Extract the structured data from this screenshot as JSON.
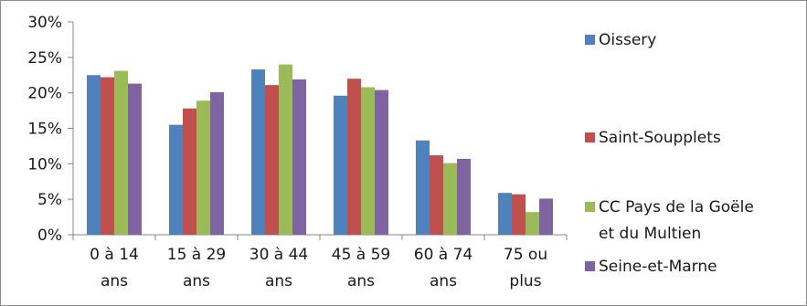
{
  "chart_data": {
    "type": "bar",
    "categories": [
      [
        "0 à 14",
        "ans"
      ],
      [
        "15 à 29",
        "ans"
      ],
      [
        "30 à 44",
        "ans"
      ],
      [
        "45 à 59",
        "ans"
      ],
      [
        "60 à 74",
        "ans"
      ],
      [
        "75 ou",
        "plus"
      ]
    ],
    "series": [
      {
        "name": "Oissery",
        "color": "#4f81bd",
        "values": [
          22.5,
          15.5,
          23.3,
          19.6,
          13.3,
          5.9
        ]
      },
      {
        "name": "Saint-Soupplets",
        "color": "#c0504d",
        "values": [
          22.2,
          17.8,
          21.1,
          22.0,
          11.2,
          5.7
        ]
      },
      {
        "name": [
          "CC Pays de la Goële",
          "et du Multien"
        ],
        "color": "#9bbb59",
        "values": [
          23.1,
          18.9,
          24.0,
          20.8,
          10.1,
          3.2
        ]
      },
      {
        "name": "Seine-et-Marne",
        "color": "#8064a2",
        "values": [
          21.3,
          20.1,
          21.9,
          20.4,
          10.7,
          5.1
        ]
      }
    ],
    "y_ticks": [
      "0%",
      "5%",
      "10%",
      "15%",
      "20%",
      "25%",
      "30%"
    ],
    "ylim": [
      0,
      30
    ],
    "grid": false,
    "legend_position": "right",
    "title": "",
    "xlabel": "",
    "ylabel": ""
  }
}
